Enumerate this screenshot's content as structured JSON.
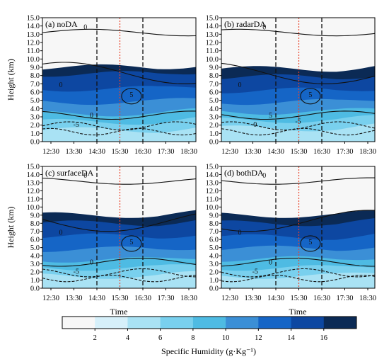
{
  "chart_data": {
    "type": "heatmap",
    "x_ticks": [
      "12:30",
      "13:30",
      "14:30",
      "15:30",
      "16:30",
      "17:30",
      "18:30"
    ],
    "y_ticks": [
      "0.0",
      "1.0",
      "2.0",
      "3.0",
      "4.0",
      "5.0",
      "6.0",
      "7.0",
      "8.0",
      "9.0",
      "10.0",
      "11.0",
      "12.0",
      "13.0",
      "14.0",
      "15.0"
    ],
    "ylim": [
      0,
      15
    ],
    "xlabel": "Time",
    "ylabel": "Height (km)",
    "vlines_black_dashed": [
      "14:30",
      "16:30"
    ],
    "vline_red_dotted": "15:30",
    "panels": [
      {
        "title": "(a) noDA",
        "fill_tops_km": [
          1.4,
          2.4,
          3.4,
          4.8,
          6.4,
          8.2,
          9.0
        ],
        "contour_labels": [
          "0",
          "0",
          "5",
          "0",
          "-5"
        ]
      },
      {
        "title": "(b) radarDA",
        "fill_tops_km": [
          1.6,
          2.6,
          3.6,
          4.8,
          6.2,
          7.8,
          8.8
        ],
        "contour_labels": [
          "0",
          "0",
          "5",
          "5",
          "0",
          "-5"
        ]
      },
      {
        "title": "(c) surfaceDA",
        "fill_tops_km": [
          1.5,
          2.5,
          3.5,
          4.8,
          6.4,
          8.0,
          9.0
        ],
        "contour_labels": [
          "0",
          "0",
          "5",
          "0",
          "-5"
        ]
      },
      {
        "title": "(d) bothDA",
        "fill_tops_km": [
          1.5,
          2.5,
          3.6,
          4.9,
          6.3,
          8.0,
          9.0
        ],
        "contour_labels": [
          "0",
          "0",
          "5",
          "0",
          "-5"
        ]
      }
    ],
    "colorbar": {
      "title": "Specific Humidity (g·Kg⁻¹)",
      "ticks": [
        "2",
        "4",
        "6",
        "8",
        "10",
        "12",
        "14",
        "16"
      ],
      "colors": [
        "#f7f7f7",
        "#d6f0fa",
        "#a9e2f4",
        "#79d0ee",
        "#4ebbe3",
        "#3b8fd6",
        "#1565c6",
        "#0d47a1",
        "#0b2a55"
      ]
    }
  }
}
